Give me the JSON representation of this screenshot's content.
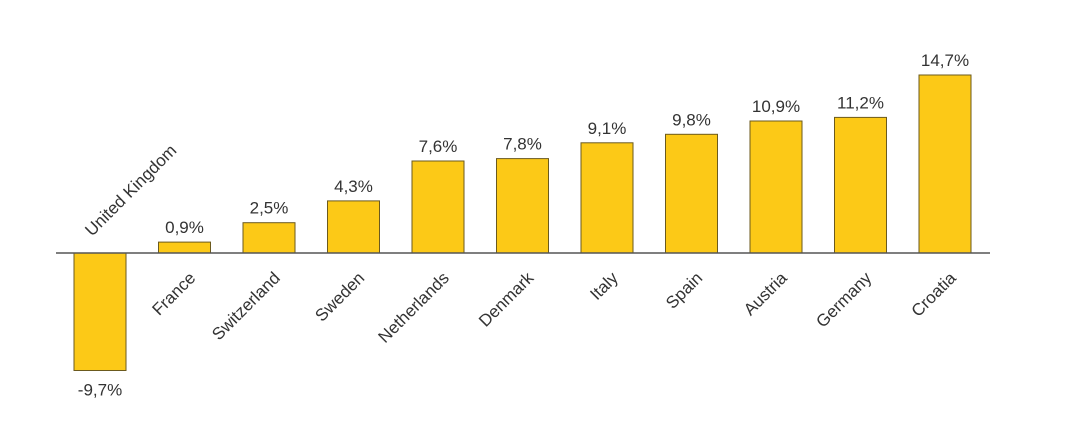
{
  "chart_data": {
    "type": "bar",
    "categories": [
      "United Kingdom",
      "France",
      "Switzerland",
      "Sweden",
      "Netherlands",
      "Denmark",
      "Italy",
      "Spain",
      "Austria",
      "Germany",
      "Croatia"
    ],
    "values": [
      -9.7,
      0.9,
      2.5,
      4.3,
      7.6,
      7.8,
      9.1,
      9.8,
      10.9,
      11.2,
      14.7
    ],
    "value_labels": [
      "-9,7%",
      "0,9%",
      "2,5%",
      "4,3%",
      "7,6%",
      "7,8%",
      "9,1%",
      "9,8%",
      "10,9%",
      "11,2%",
      "14,7%"
    ],
    "title": "",
    "xlabel": "",
    "ylabel": "",
    "ylim": [
      -9.7,
      14.7
    ],
    "grid": false,
    "bar_color": "#fcc917",
    "bar_edge_color": "#6b5a1e"
  }
}
